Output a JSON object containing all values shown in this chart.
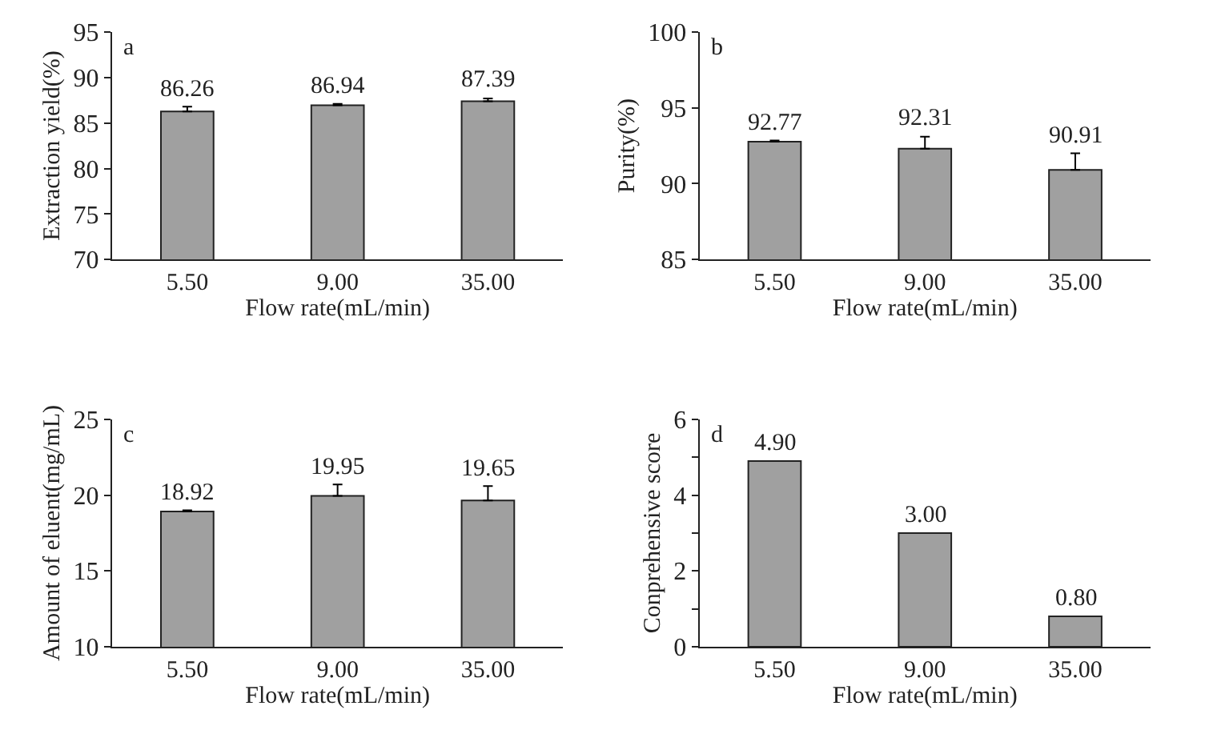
{
  "chart_data": [
    {
      "type": "bar",
      "title": "a",
      "xlabel": "Flow rate(mL/min)",
      "ylabel": "Extraction yield(%)",
      "categories": [
        "5.50",
        "9.00",
        "35.00"
      ],
      "values": [
        86.26,
        86.94,
        87.39
      ],
      "value_labels": [
        "86.26",
        "86.94",
        "87.39"
      ],
      "errors": [
        [
          86.26,
          86.8
        ],
        [
          86.94,
          87.1
        ],
        [
          87.39,
          87.7
        ]
      ],
      "color": "#a0a0a0",
      "ylim": [
        70,
        95
      ],
      "yticks": [
        70,
        75,
        80,
        85,
        90,
        95
      ]
    },
    {
      "type": "bar",
      "title": "b",
      "xlabel": "Flow rate(mL/min)",
      "ylabel": "Purity(%)",
      "categories": [
        "5.50",
        "9.00",
        "35.00"
      ],
      "values": [
        92.77,
        92.31,
        90.91
      ],
      "value_labels": [
        "92.77",
        "92.31",
        "90.91"
      ],
      "errors": [
        [
          92.77,
          92.85
        ],
        [
          92.31,
          93.1
        ],
        [
          90.91,
          92.0
        ]
      ],
      "color": "#a0a0a0",
      "ylim": [
        85,
        100
      ],
      "yticks": [
        85,
        90,
        95,
        100
      ]
    },
    {
      "type": "bar",
      "title": "c",
      "xlabel": "Flow rate(mL/min)",
      "ylabel": "Amount of eluent(mg/mL)",
      "categories": [
        "5.50",
        "9.00",
        "35.00"
      ],
      "values": [
        18.92,
        19.95,
        19.65
      ],
      "value_labels": [
        "18.92",
        "19.95",
        "19.65"
      ],
      "errors": [
        [
          18.92,
          19.0
        ],
        [
          19.95,
          20.7
        ],
        [
          19.65,
          20.6
        ]
      ],
      "color": "#a0a0a0",
      "ylim": [
        10,
        25
      ],
      "yticks": [
        10,
        15,
        20,
        25
      ]
    },
    {
      "type": "bar",
      "title": "d",
      "xlabel": "Flow rate(mL/min)",
      "ylabel": "Conprehensive score",
      "categories": [
        "5.50",
        "9.00",
        "35.00"
      ],
      "values": [
        4.9,
        3.0,
        0.8
      ],
      "value_labels": [
        "4.90",
        "3.00",
        "0.80"
      ],
      "color": "#a0a0a0",
      "ylim": [
        0,
        6
      ],
      "yticks": [
        0,
        {
          "value": 1,
          "label": null
        },
        2,
        {
          "value": 3,
          "label": null
        },
        4,
        {
          "value": 5,
          "label": null
        },
        6
      ]
    }
  ]
}
